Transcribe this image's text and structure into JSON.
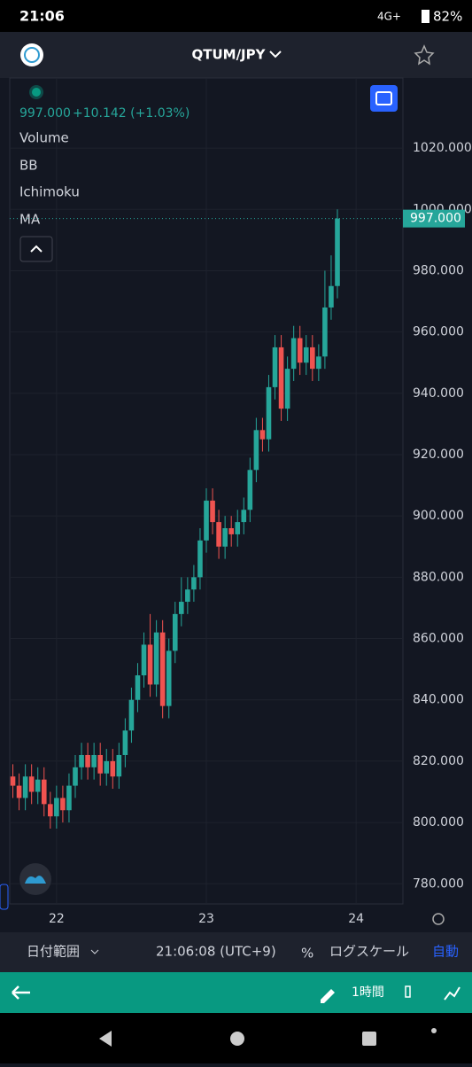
{
  "status_bar": {
    "time": "21:06",
    "network": "4G+",
    "battery": "82%"
  },
  "header": {
    "symbol": "QTUM/JPY"
  },
  "legend": {
    "price": "997.000",
    "change": "+10.142 (+1.03%)",
    "indicators": [
      "Volume",
      "BB",
      "Ichimoku",
      "MA"
    ]
  },
  "chart_data": {
    "type": "candlestick",
    "x": [
      -7,
      -6,
      -5,
      -4,
      -3,
      -2,
      -1,
      0,
      1,
      2,
      3,
      4,
      5,
      6,
      7,
      8,
      9,
      10,
      11,
      12,
      13,
      14,
      15,
      16,
      17,
      18,
      19,
      20,
      21,
      22,
      23,
      24,
      25,
      26,
      27,
      28,
      29,
      30,
      31,
      32,
      33,
      34,
      35,
      36,
      37,
      38,
      39,
      40,
      41,
      42,
      43,
      44,
      45
    ],
    "open": [
      815,
      812,
      808,
      815,
      810,
      814,
      806,
      802,
      808,
      804,
      812,
      818,
      822,
      818,
      822,
      816,
      820,
      815,
      822,
      830,
      840,
      848,
      858,
      845,
      862,
      838,
      856,
      868,
      872,
      876,
      880,
      892,
      905,
      898,
      890,
      896,
      894,
      898,
      902,
      915,
      928,
      925,
      942,
      955,
      935,
      948,
      958,
      950,
      955,
      948,
      952,
      968,
      975
    ],
    "high": [
      819,
      816,
      819,
      819,
      818,
      818,
      810,
      812,
      812,
      816,
      822,
      826,
      826,
      826,
      826,
      824,
      824,
      826,
      834,
      844,
      852,
      862,
      868,
      866,
      866,
      860,
      872,
      880,
      880,
      884,
      896,
      909,
      909,
      902,
      900,
      900,
      902,
      906,
      919,
      932,
      932,
      946,
      959,
      959,
      952,
      962,
      962,
      959,
      959,
      956,
      980,
      985,
      1000
    ],
    "low": [
      808,
      804,
      804,
      806,
      806,
      802,
      798,
      798,
      800,
      800,
      808,
      814,
      814,
      814,
      812,
      812,
      811,
      811,
      818,
      826,
      836,
      844,
      841,
      841,
      834,
      834,
      852,
      864,
      868,
      872,
      876,
      888,
      894,
      886,
      886,
      890,
      890,
      894,
      898,
      911,
      921,
      921,
      938,
      931,
      931,
      944,
      946,
      946,
      944,
      944,
      948,
      964,
      971
    ],
    "close": [
      812,
      808,
      815,
      810,
      814,
      806,
      802,
      808,
      804,
      812,
      818,
      822,
      818,
      822,
      816,
      820,
      815,
      822,
      830,
      840,
      848,
      858,
      845,
      862,
      838,
      856,
      868,
      872,
      876,
      880,
      892,
      905,
      898,
      890,
      896,
      894,
      898,
      902,
      915,
      928,
      925,
      942,
      955,
      935,
      948,
      958,
      950,
      955,
      948,
      952,
      968,
      975,
      997
    ],
    "up_color": "#26a69a",
    "down_color": "#ef5350",
    "last_price": 997,
    "last_price_label": "997.000",
    "xlim": [
      -7.5,
      55.5
    ],
    "xticks": [
      {
        "value": 0,
        "label": "22"
      },
      {
        "value": 24,
        "label": "23"
      },
      {
        "value": 48,
        "label": "24"
      }
    ],
    "ylim": [
      773.43,
      1042.86
    ],
    "yticks": [
      {
        "value": 1020,
        "label": "1020.000"
      },
      {
        "value": 1000,
        "label": "1000.000"
      },
      {
        "value": 980,
        "label": "980.000"
      },
      {
        "value": 960,
        "label": "960.000"
      },
      {
        "value": 940,
        "label": "940.000"
      },
      {
        "value": 920,
        "label": "920.000"
      },
      {
        "value": 900,
        "label": "900.000"
      },
      {
        "value": 880,
        "label": "880.000"
      },
      {
        "value": 860,
        "label": "860.000"
      },
      {
        "value": 840,
        "label": "840.000"
      },
      {
        "value": 820,
        "label": "820.000"
      },
      {
        "value": 800,
        "label": "800.000"
      },
      {
        "value": 780,
        "label": "780.000"
      }
    ],
    "grid": true
  },
  "bottom_bar": {
    "date_range": "日付範囲",
    "time": "21:06:08 (UTC+9)",
    "percent": "%",
    "log_scale": "ログスケール",
    "auto": "自動"
  },
  "toolbar": {
    "interval": "1時間"
  }
}
